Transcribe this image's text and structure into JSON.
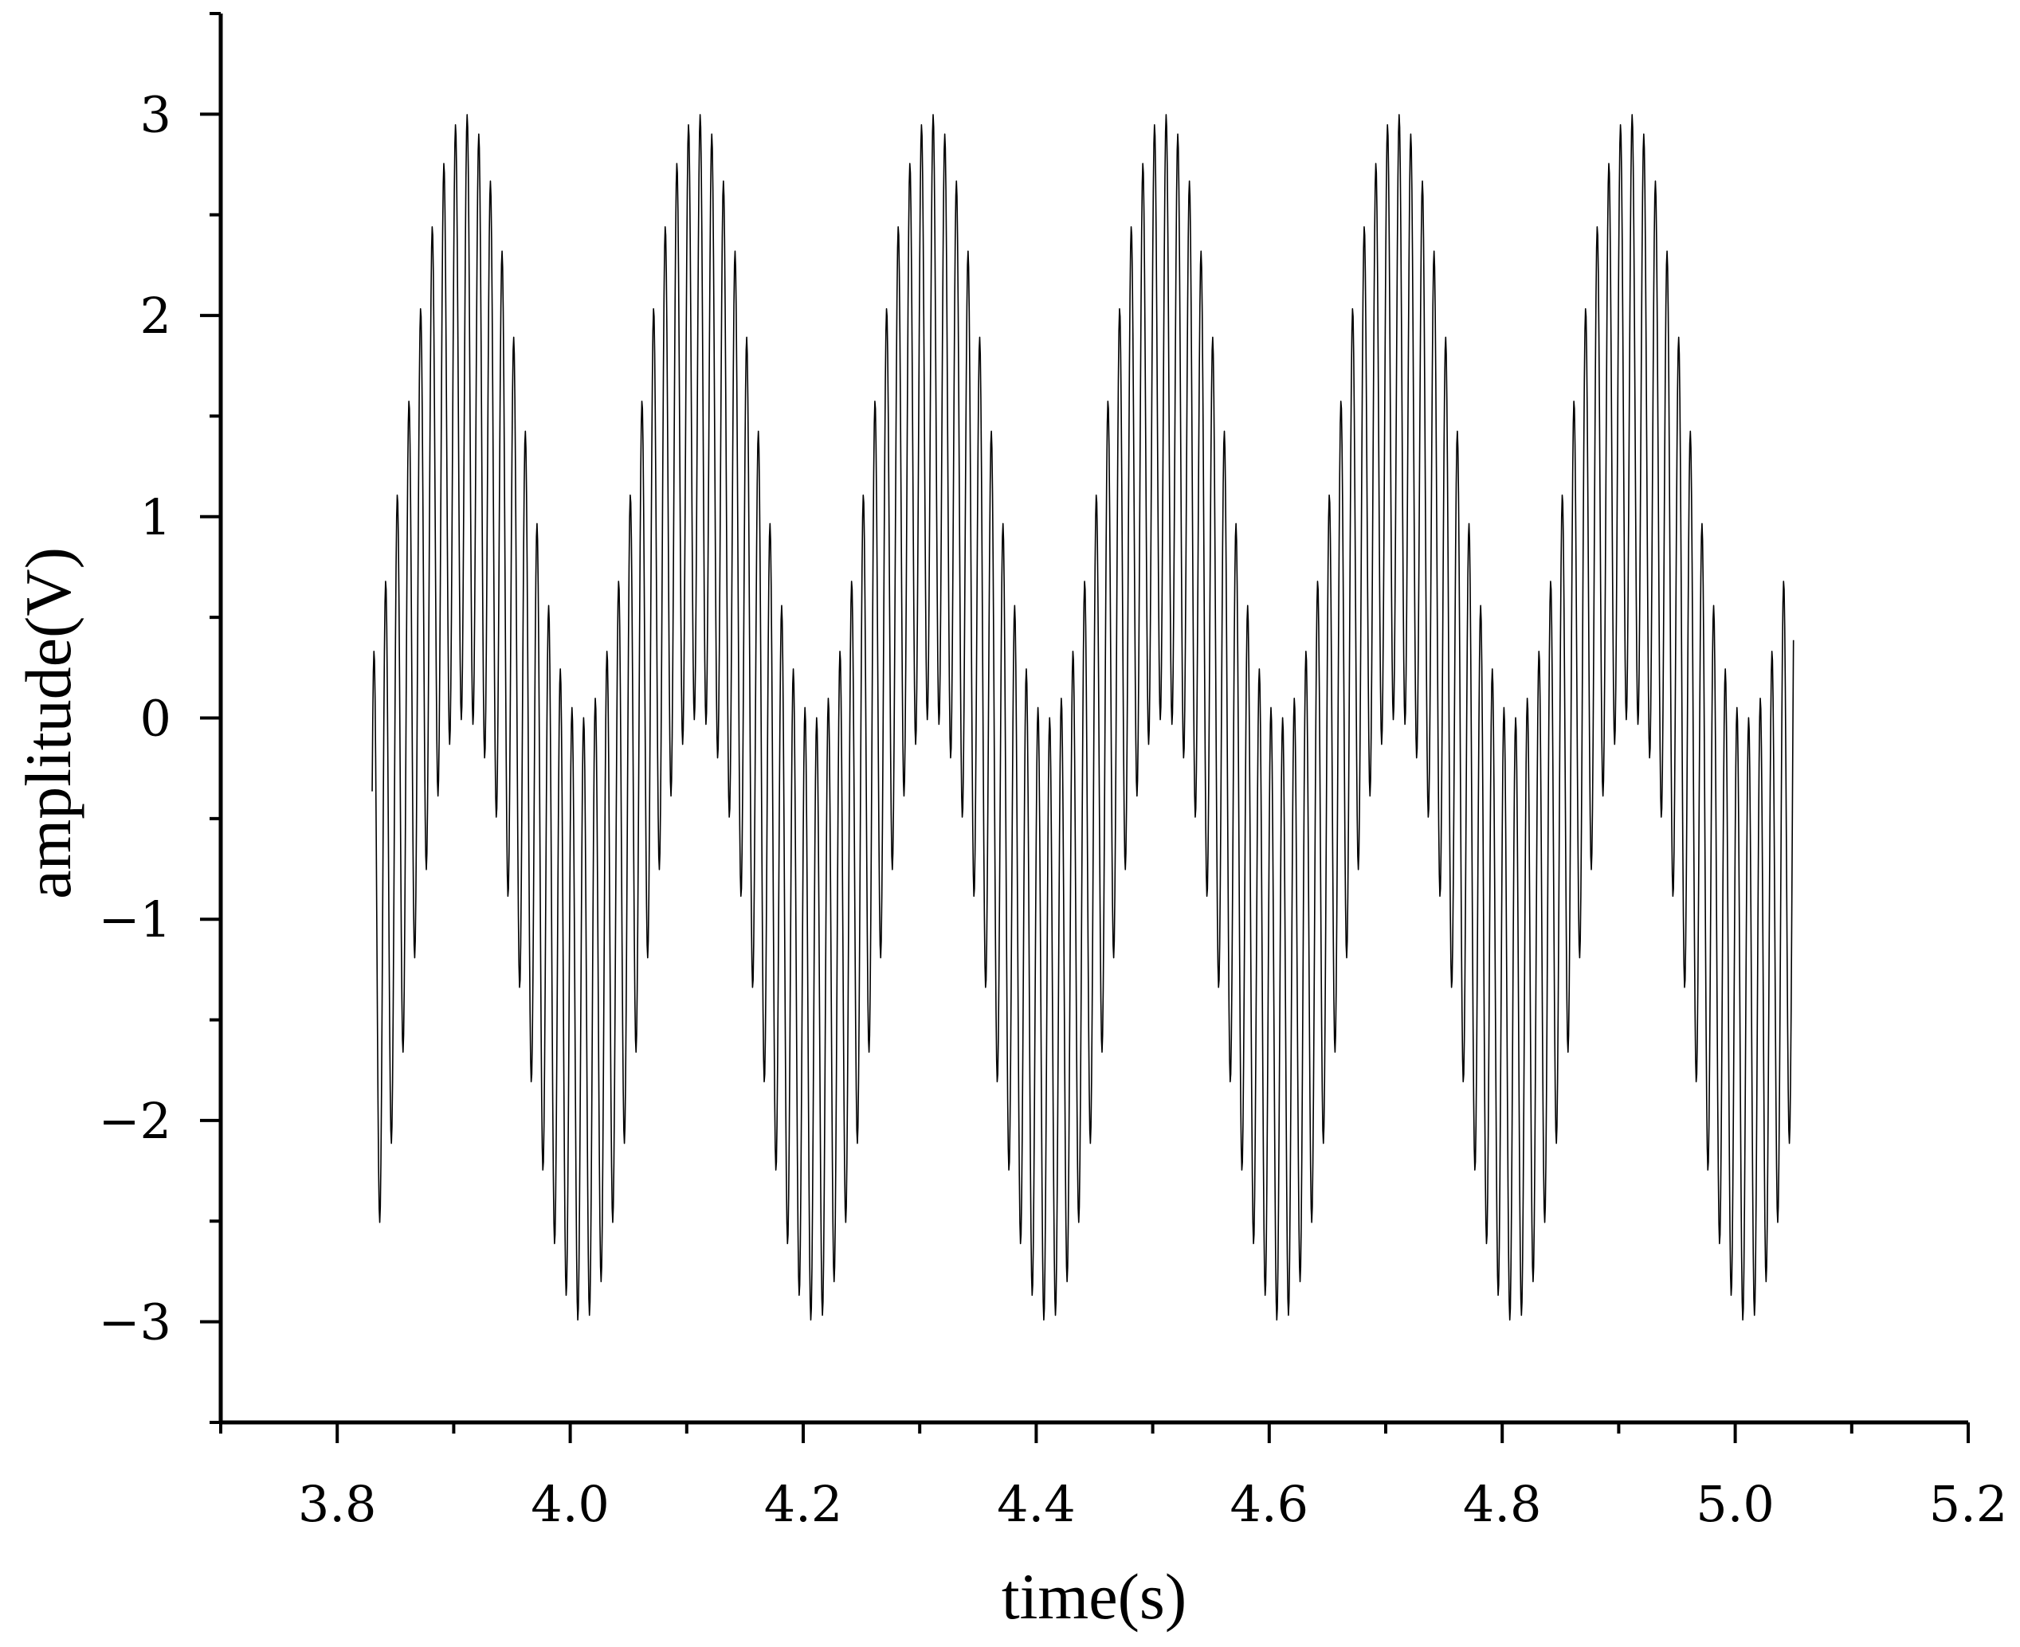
{
  "chart_data": {
    "type": "line",
    "xlabel": "time(s)",
    "ylabel": "amplitude(V)",
    "xlim": [
      3.7,
      5.2
    ],
    "ylim": [
      -3.5,
      3.5
    ],
    "xticks": [
      3.8,
      4.0,
      4.2,
      4.4,
      4.6,
      4.8,
      5.0,
      5.2
    ],
    "xtick_labels": [
      "3.8",
      "4.0",
      "4.2",
      "4.4",
      "4.6",
      "4.8",
      "5.0",
      "5.2"
    ],
    "yticks": [
      -3,
      -2,
      -1,
      0,
      1,
      2,
      3
    ],
    "ytick_labels": [
      "−3",
      "−2",
      "−1",
      "0",
      "1",
      "2",
      "3"
    ],
    "grid": false,
    "legend": "none",
    "line_color": "#000000",
    "series": [
      {
        "x_start": 3.83,
        "x_end": 5.05,
        "sample_interval": 0.0005,
        "low_frequency_component": {
          "amplitude": 1.5,
          "frequency_hz": 5,
          "phase_rad": -0.94
        },
        "high_frequency_component": {
          "amplitude": 1.5,
          "frequency_hz": 100,
          "phase_rad": 0.6
        },
        "peak_max": 2.98,
        "peak_min": -2.98
      }
    ]
  }
}
